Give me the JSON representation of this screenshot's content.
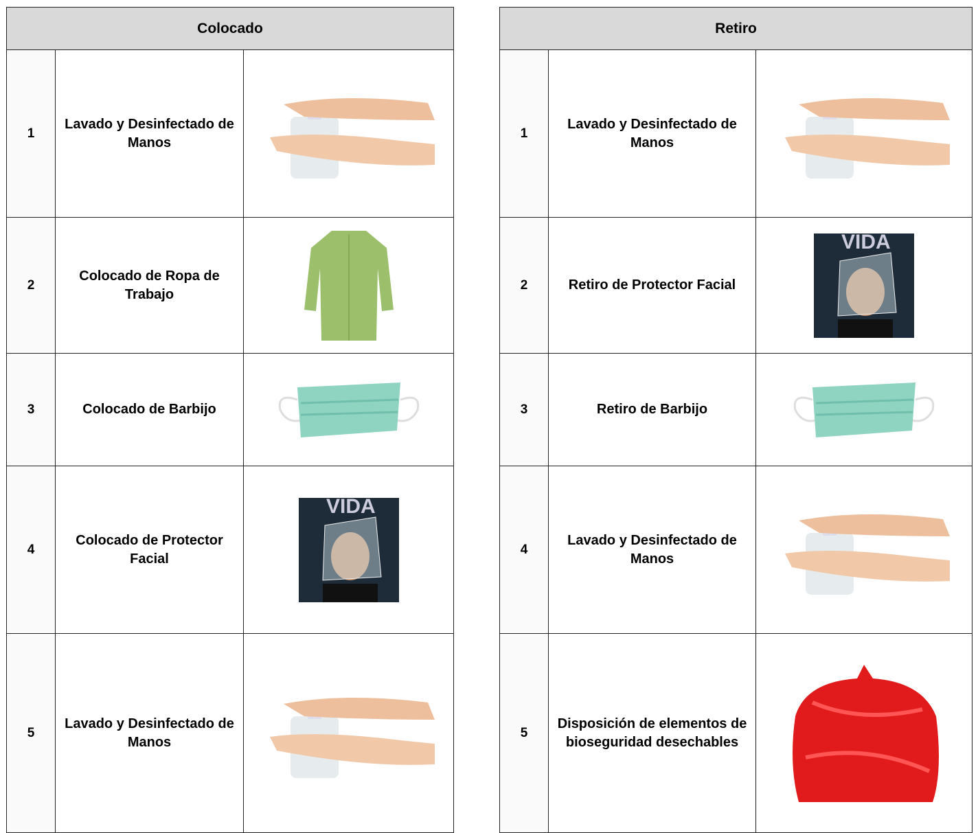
{
  "left": {
    "title": "Colocado",
    "rows": [
      {
        "number": "1",
        "label": "Lavado y Desinfectado de Manos"
      },
      {
        "number": "2",
        "label": "Colocado de Ropa de Trabajo"
      },
      {
        "number": "3",
        "label": "Colocado de Barbijo"
      },
      {
        "number": "4",
        "label": "Colocado de Protector Facial"
      },
      {
        "number": "5",
        "label": "Lavado y Desinfectado  de Manos"
      }
    ]
  },
  "right": {
    "title": "Retiro",
    "rows": [
      {
        "number": "1",
        "label": "Lavado y Desinfectado de Manos"
      },
      {
        "number": "2",
        "label": "Retiro de Protector Facial"
      },
      {
        "number": "3",
        "label": "Retiro de Barbijo"
      },
      {
        "number": "4",
        "label": "Lavado y Desinfectado de Manos"
      },
      {
        "number": "5",
        "label": "Disposición de elementos de bioseguridad desechables"
      }
    ]
  }
}
